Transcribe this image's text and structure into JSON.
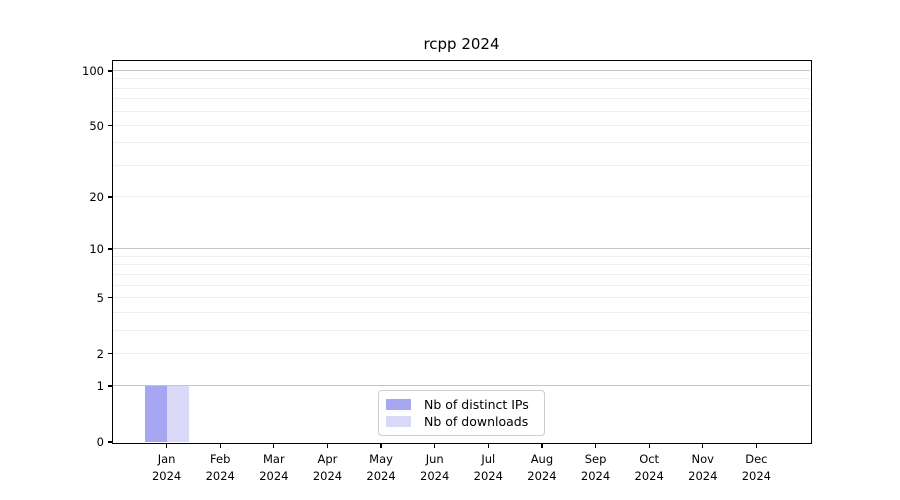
{
  "chart_data": {
    "type": "bar",
    "title": "rcpp 2024",
    "categories": [
      {
        "label": "Jan",
        "sub": "2024"
      },
      {
        "label": "Feb",
        "sub": "2024"
      },
      {
        "label": "Mar",
        "sub": "2024"
      },
      {
        "label": "Apr",
        "sub": "2024"
      },
      {
        "label": "May",
        "sub": "2024"
      },
      {
        "label": "Jun",
        "sub": "2024"
      },
      {
        "label": "Jul",
        "sub": "2024"
      },
      {
        "label": "Aug",
        "sub": "2024"
      },
      {
        "label": "Sep",
        "sub": "2024"
      },
      {
        "label": "Oct",
        "sub": "2024"
      },
      {
        "label": "Nov",
        "sub": "2024"
      },
      {
        "label": "Dec",
        "sub": "2024"
      }
    ],
    "series": [
      {
        "name": "Nb of distinct IPs",
        "color": "#a6a6f2",
        "values": [
          1,
          0,
          0,
          0,
          0,
          0,
          0,
          0,
          0,
          0,
          0,
          0
        ]
      },
      {
        "name": "Nb of downloads",
        "color": "#dadaf8",
        "values": [
          1,
          0,
          0,
          0,
          0,
          0,
          0,
          0,
          0,
          0,
          0,
          0
        ]
      }
    ],
    "xlabel": "",
    "ylabel": "",
    "yscale": "log1p",
    "ylim": [
      0,
      100
    ],
    "y_ticks": [
      0,
      1,
      2,
      5,
      10,
      20,
      50,
      100
    ],
    "y_grid_major": [
      1,
      10,
      100
    ],
    "y_grid_minor": [
      2,
      3,
      4,
      5,
      6,
      7,
      8,
      9,
      20,
      30,
      40,
      50,
      60,
      70,
      80,
      90
    ],
    "grid": "on",
    "legend_position": "lower center"
  },
  "colors": {
    "grid_minor": "#eeeeee",
    "grid_major": "#c4c4c4",
    "axis": "#000000",
    "legend_border": "#cccccc",
    "background": "#ffffff"
  }
}
